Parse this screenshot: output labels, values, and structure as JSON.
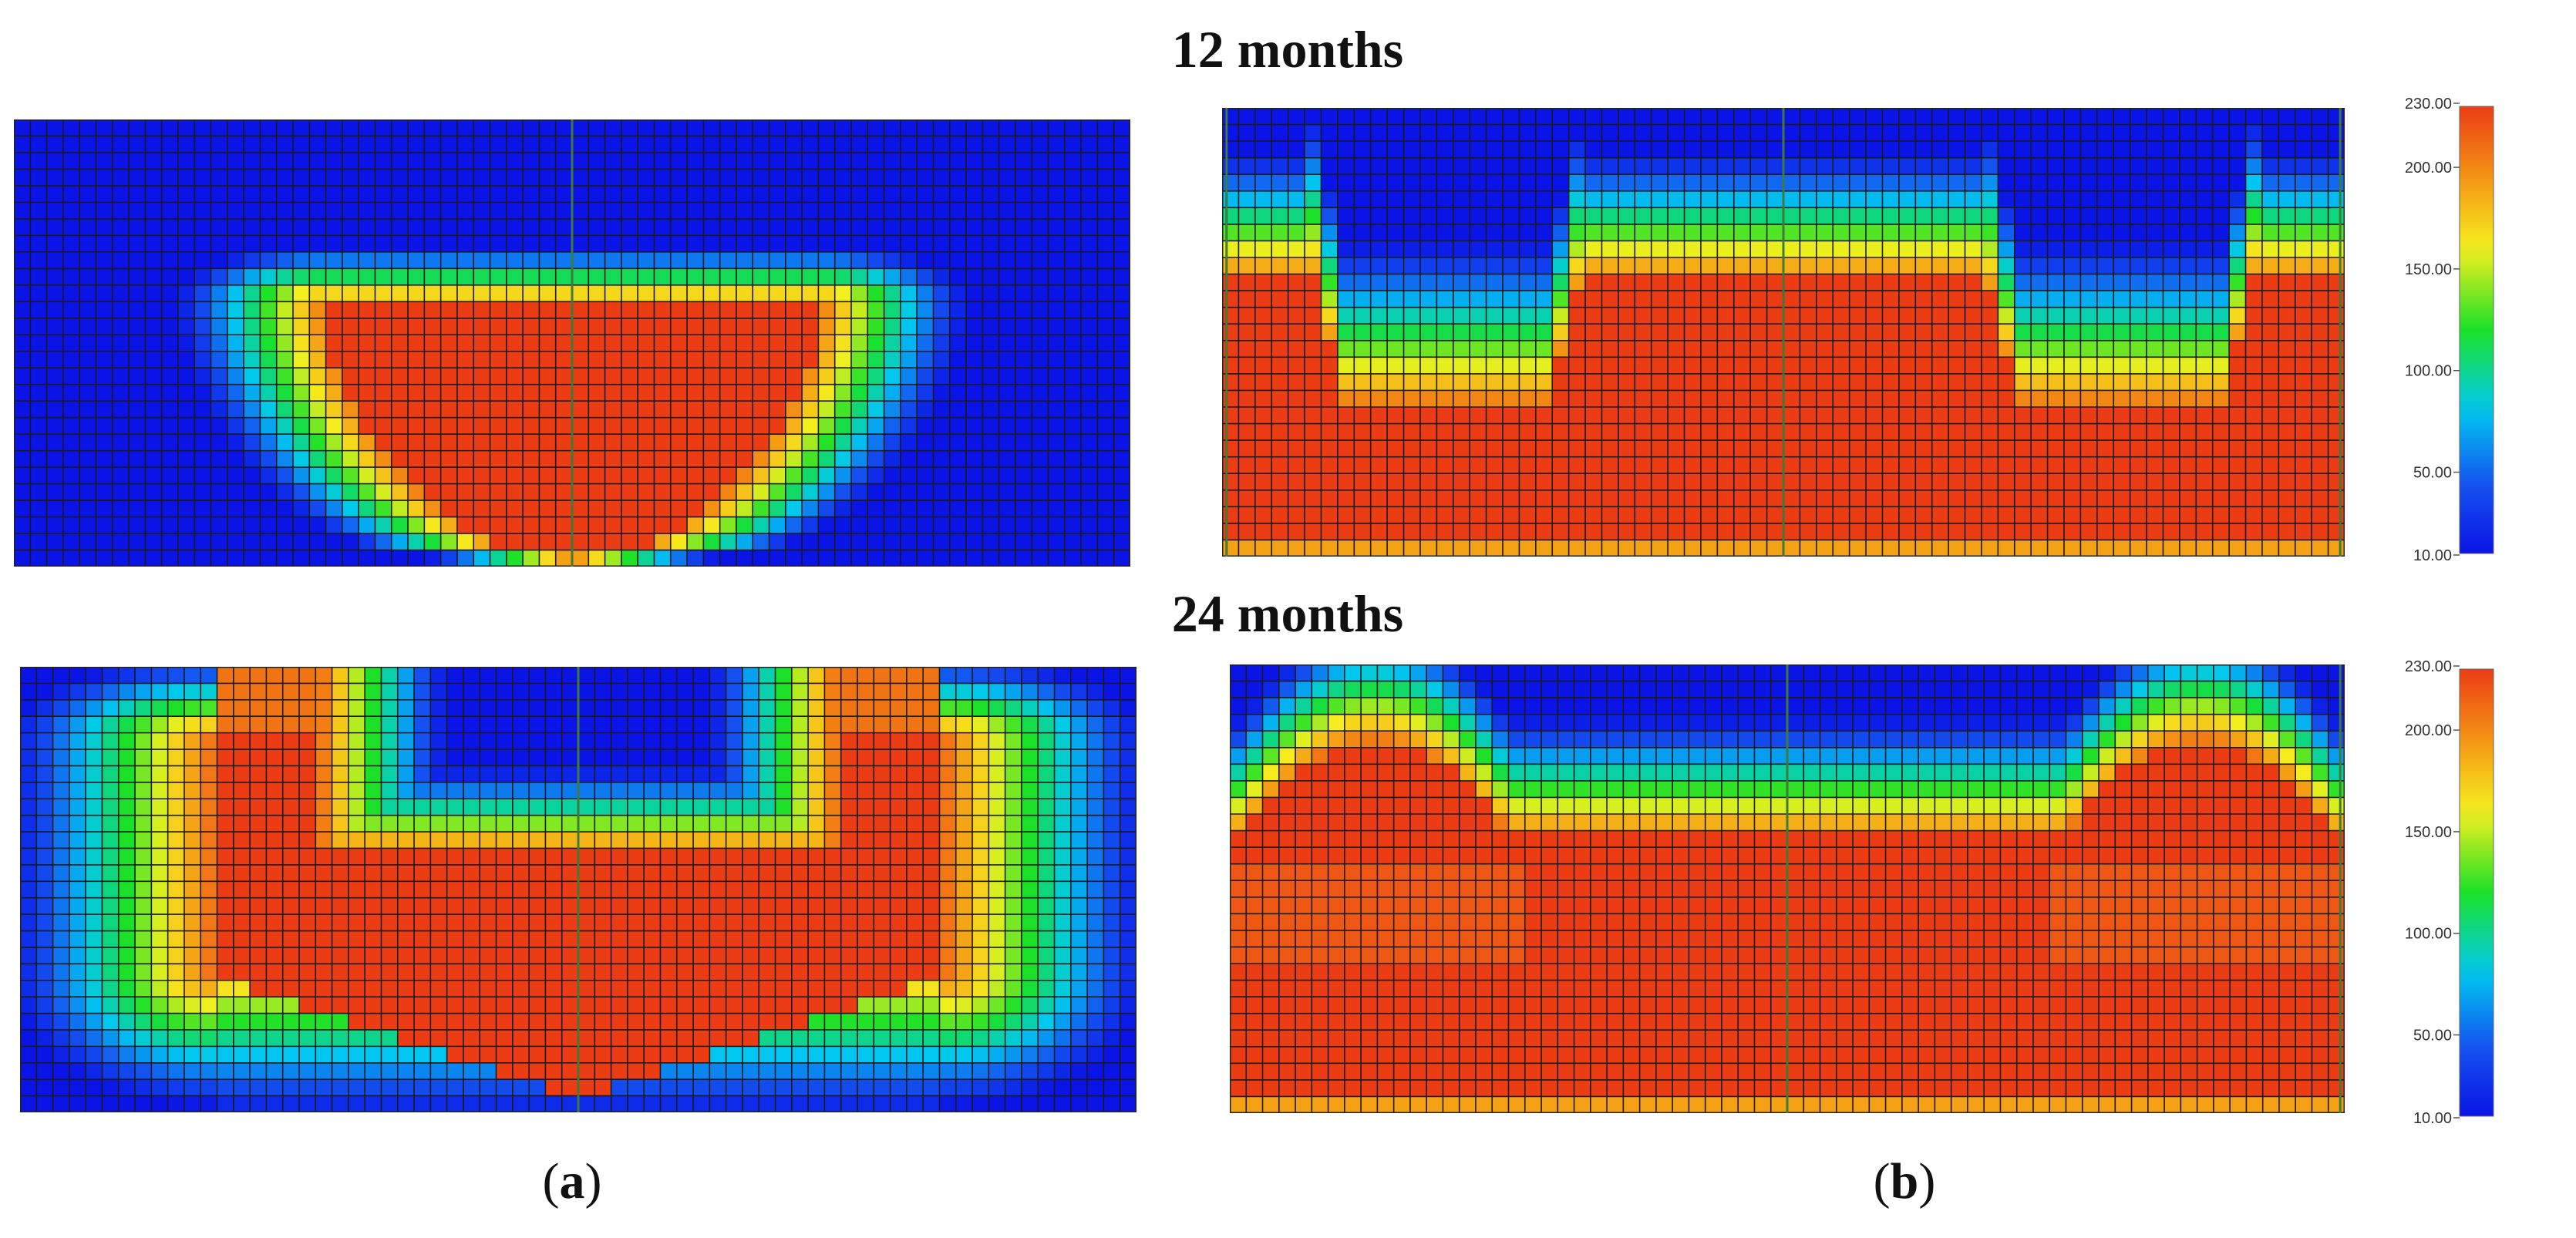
{
  "titles": {
    "top": "12 months",
    "bottom": "24 months"
  },
  "panel_labels": [
    {
      "letter": "a"
    },
    {
      "letter": "b"
    }
  ],
  "colorbar": {
    "min_label": "10.00",
    "max_label": "230.00",
    "ticks": [
      "50.00",
      "100.00",
      "150.00",
      "200.00"
    ],
    "tick_values": [
      50,
      100,
      150,
      200
    ],
    "min": 10,
    "max": 230
  },
  "colors": {
    "low": "#0a14e6",
    "mid": "#17e617",
    "high": "#eb3c14",
    "grid": "#1a1a1a"
  },
  "chart_data": [
    {
      "type": "heatmap",
      "panel": "a",
      "time": "12 months",
      "grid": [
        68,
        27
      ]
    },
    {
      "type": "heatmap",
      "panel": "b",
      "time": "12 months",
      "grid": [
        68,
        27
      ]
    },
    {
      "type": "heatmap",
      "panel": "a",
      "time": "24 months",
      "grid": [
        68,
        27
      ]
    },
    {
      "type": "heatmap",
      "panel": "b",
      "time": "24 months",
      "grid": [
        68,
        27
      ]
    }
  ]
}
